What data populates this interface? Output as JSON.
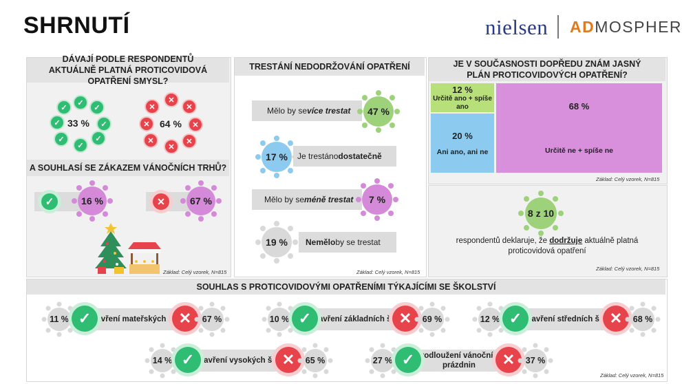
{
  "title": "SHRNUTÍ",
  "logo": {
    "nielsen": "nielsen",
    "ad": "AD",
    "mosphere": "MOSPHERE"
  },
  "panel1": {
    "header": "DÁVAJÍ PODLE RESPONDENTŮ AKTUÁLNĚ PLATNÁ PROTICOVIDOVÁ OPATŘENÍ SMYSL?",
    "yes_pct": "33 %",
    "no_pct": "64 %",
    "sub_header": "A SOUHLASÍ SE ZÁKAZEM VÁNOČNÍCH TRHŮ?",
    "agree_pct": "16 %",
    "disagree_pct": "67 %",
    "footnote": "Základ: Celý vzorek, N=815"
  },
  "panel2": {
    "header": "TRESTÁNÍ NEDODRŽOVÁNÍ OPATŘENÍ",
    "rows": [
      {
        "pre": "Mělo by se ",
        "bold": "více trestat",
        "post": "",
        "pct": "47 %"
      },
      {
        "pre": "Je trestáno ",
        "bold": "dostatečně",
        "post": "",
        "pct": "17 %"
      },
      {
        "pre": "Mělo by se ",
        "bold": "méně trestat",
        "post": "",
        "pct": "7 %"
      },
      {
        "pre": "",
        "bold": "Nemělo",
        "post": " by se trestat",
        "pct": "19 %"
      }
    ],
    "footnote": "Základ: Celý vzorek, N=815"
  },
  "panel3": {
    "header": "JE V SOUČASNOSTI DOPŘEDU ZNÁM JASNÝ PLÁN PROTICOVIDOVÝCH OPATŘENÍ?",
    "cells": [
      {
        "pct": "12 %",
        "label": "Určitě ano + spíše ano",
        "color": "#b8e07a"
      },
      {
        "pct": "20 %",
        "label": "Ani ano, ani ne",
        "color": "#8ccbef"
      },
      {
        "pct": "68 %",
        "label": "Určitě ne + spíše ne",
        "color": "#d88fdc"
      }
    ],
    "footnote": "Základ: Celý vzorek, N=815"
  },
  "panel4": {
    "value": "8 z 10",
    "text_pre": "respondentů deklaruje, že ",
    "text_bold": "dodržuje",
    "text_post": " aktuálně platná proticovidová opatření",
    "footnote": "Základ: Celý vzorek, N=815"
  },
  "panel5": {
    "header": "SOUHLAS S PROTICOVIDOVÝMI OPATŘENÍMI TÝKAJÍCÍMI SE ŠKOLSTVÍ",
    "items": [
      {
        "label": "Uzavření mateřských škol",
        "yes": "11 %",
        "no": "67 %"
      },
      {
        "label": "Uzavření základních škol",
        "yes": "10 %",
        "no": "69 %"
      },
      {
        "label": "Uzavření středních škol",
        "yes": "12 %",
        "no": "68 %"
      },
      {
        "label": "Uzavření vysokých škol",
        "yes": "14 %",
        "no": "65 %"
      },
      {
        "label": "Prodloužení vánočních prázdnin",
        "yes": "27 %",
        "no": "37 %"
      }
    ],
    "footnote": "Základ: Celý vzorek, N=815"
  },
  "colors": {
    "green_virus": "#9dd27a",
    "purple_virus": "#d48ad9",
    "blue_virus": "#8ccbef",
    "grey_virus": "#d9d9d9",
    "check": "#2ebd72",
    "cross": "#e6434b"
  },
  "icons": [
    "check-icon",
    "cross-icon",
    "virus-icon",
    "christmas-tree-icon",
    "market-stall-icon"
  ]
}
